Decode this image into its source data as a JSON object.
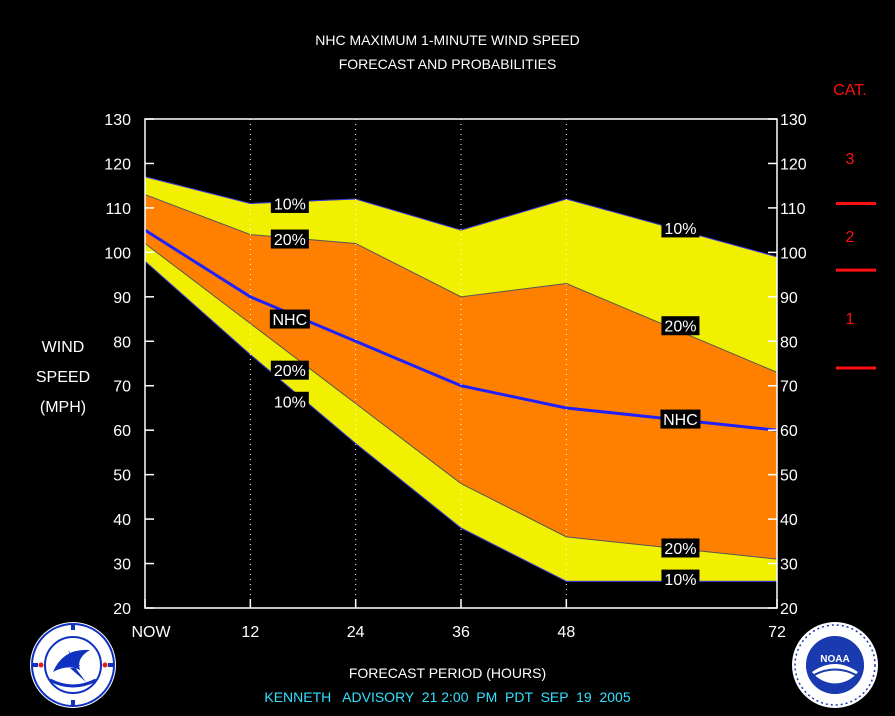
{
  "title_line1": "NHC MAXIMUM 1-MINUTE WIND SPEED",
  "title_line2": "FORECAST AND PROBABILITIES",
  "ylabel": [
    "WIND",
    "SPEED",
    "(MPH)"
  ],
  "xlabel": "FORECAST PERIOD (HOURS)",
  "advisory": "KENNETH   ADVISORY  21 2:00  PM  PDT  SEP  19  2005",
  "category": {
    "heading": "CAT.",
    "labels": [
      "3",
      "2",
      "1"
    ],
    "thresholds": [
      111,
      96,
      74
    ],
    "color": "#ff1010"
  },
  "logos": {
    "left": "NWS national weather service logo",
    "right": "NOAA logo"
  },
  "colors": {
    "band_10": "#f0f000",
    "band_20": "#ff8000",
    "nhc_line": "#2020ff",
    "background": "#000000",
    "frame": "#ffffff"
  },
  "chart_data": {
    "type": "area",
    "x_ticks": [
      0,
      12,
      24,
      36,
      48,
      72
    ],
    "x_tick_labels": [
      "NOW",
      "12",
      "24",
      "36",
      "48",
      "72"
    ],
    "xlim": [
      0,
      72
    ],
    "ylim": [
      20,
      130
    ],
    "y_ticks": [
      20,
      30,
      40,
      50,
      60,
      70,
      80,
      90,
      100,
      110,
      120,
      130
    ],
    "grid_x": [
      12,
      24,
      36,
      48
    ],
    "series": [
      {
        "name": "10%",
        "role": "upper10",
        "x": [
          0,
          12,
          24,
          36,
          48,
          72
        ],
        "y": [
          117,
          111,
          112,
          105,
          112,
          99
        ]
      },
      {
        "name": "20%",
        "role": "upper20",
        "x": [
          0,
          12,
          24,
          36,
          48,
          72
        ],
        "y": [
          113,
          104,
          102,
          90,
          93,
          73
        ]
      },
      {
        "name": "NHC",
        "role": "nhc",
        "x": [
          0,
          12,
          24,
          36,
          48,
          72
        ],
        "y": [
          105,
          90,
          80,
          70,
          65,
          60
        ]
      },
      {
        "name": "20%",
        "role": "lower20",
        "x": [
          0,
          12,
          24,
          36,
          48,
          72
        ],
        "y": [
          102,
          84,
          66,
          48,
          36,
          31
        ]
      },
      {
        "name": "10%",
        "role": "lower10",
        "x": [
          0,
          12,
          24,
          36,
          48,
          72
        ],
        "y": [
          98,
          77,
          57,
          38,
          26,
          26
        ]
      }
    ],
    "annotations": [
      {
        "text": "10%",
        "x": 16.5,
        "y": 111
      },
      {
        "text": "20%",
        "x": 16.5,
        "y": 103
      },
      {
        "text": "NHC",
        "x": 16.5,
        "y": 85
      },
      {
        "text": "20%",
        "x": 16.5,
        "y": 73.5
      },
      {
        "text": "10%",
        "x": 16.5,
        "y": 66.5
      },
      {
        "text": "10%",
        "x": 61,
        "y": 105.5
      },
      {
        "text": "20%",
        "x": 61,
        "y": 83.5
      },
      {
        "text": "NHC",
        "x": 61,
        "y": 62.5
      },
      {
        "text": "20%",
        "x": 61,
        "y": 33.5
      },
      {
        "text": "10%",
        "x": 61,
        "y": 26.5
      }
    ]
  }
}
